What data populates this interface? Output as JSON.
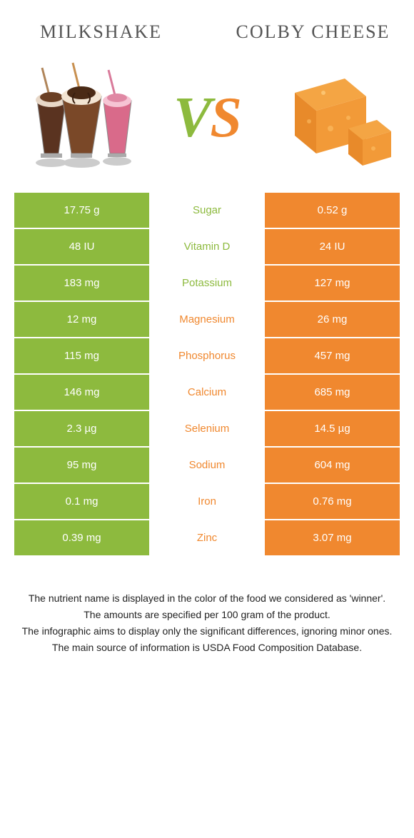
{
  "titles": {
    "left": "Milkshake",
    "right": "Colby cheese"
  },
  "vs_text": "VS",
  "colors": {
    "left_bg": "#8dba3e",
    "right_bg": "#f0882f",
    "left_text": "#8dba3e",
    "right_text": "#f0882f",
    "vs_left": "#8dba3e",
    "vs_right": "#f0882f"
  },
  "rows": [
    {
      "left": "17.75 g",
      "label": "Sugar",
      "right": "0.52 g",
      "winner": "left"
    },
    {
      "left": "48 IU",
      "label": "Vitamin D",
      "right": "24 IU",
      "winner": "left"
    },
    {
      "left": "183 mg",
      "label": "Potassium",
      "right": "127 mg",
      "winner": "left"
    },
    {
      "left": "12 mg",
      "label": "Magnesium",
      "right": "26 mg",
      "winner": "right"
    },
    {
      "left": "115 mg",
      "label": "Phosphorus",
      "right": "457 mg",
      "winner": "right"
    },
    {
      "left": "146 mg",
      "label": "Calcium",
      "right": "685 mg",
      "winner": "right"
    },
    {
      "left": "2.3 µg",
      "label": "Selenium",
      "right": "14.5 µg",
      "winner": "right"
    },
    {
      "left": "95 mg",
      "label": "Sodium",
      "right": "604 mg",
      "winner": "right"
    },
    {
      "left": "0.1 mg",
      "label": "Iron",
      "right": "0.76 mg",
      "winner": "right"
    },
    {
      "left": "0.39 mg",
      "label": "Zinc",
      "right": "3.07 mg",
      "winner": "right"
    }
  ],
  "footer": [
    "The nutrient name is displayed in the color of the food we considered as 'winner'.",
    "The amounts are specified per 100 gram of the product.",
    "The infographic aims to display only the significant differences, ignoring minor ones.",
    "The main source of information is USDA Food Composition Database."
  ]
}
